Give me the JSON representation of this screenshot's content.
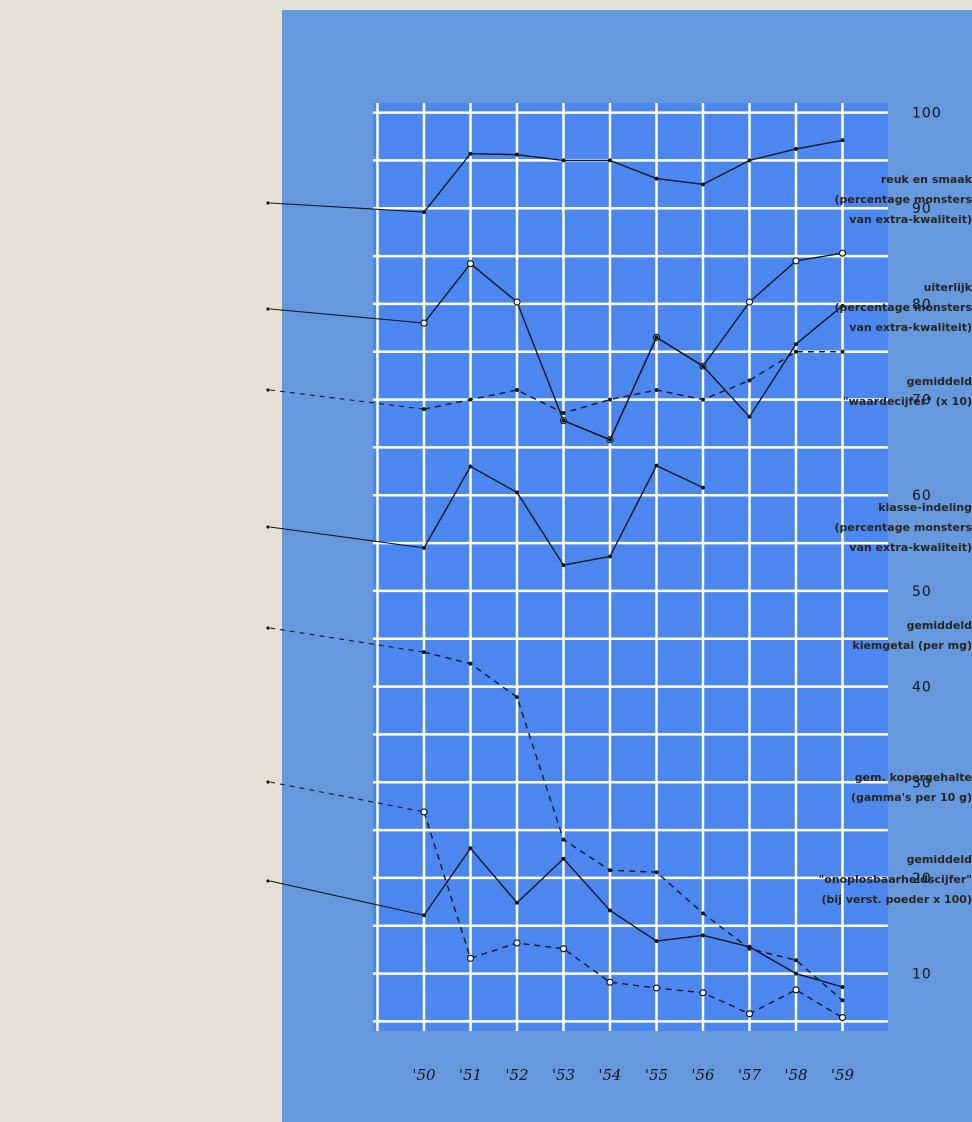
{
  "chart_data": {
    "type": "line",
    "categories": [
      "'50",
      "'51",
      "'52",
      "'53",
      "'54",
      "'55",
      "'56",
      "'57",
      "'58",
      "'59"
    ],
    "yticks": [
      "100",
      "90",
      "80",
      "70",
      "60",
      "50",
      "40",
      "30",
      "20",
      "10"
    ],
    "ylim": [
      4,
      101
    ],
    "grid": true,
    "series": [
      {
        "name_lines": [
          "reuk en smaak",
          "(percentage monsters",
          "van extra-kwaliteit)"
        ],
        "style": "solid",
        "marker": "dot",
        "values": [
          89.6,
          95.7,
          95.6,
          95.0,
          95.0,
          93.1,
          92.5,
          95.0,
          96.2,
          97.1
        ]
      },
      {
        "name_lines": [
          "uiterlijk",
          "(percentage monsters",
          "van extra-kwaliteit)"
        ],
        "style": "solid",
        "marker": "circle",
        "values": [
          78.0,
          84.2,
          80.2,
          67.8,
          65.8,
          76.5,
          73.5,
          80.2,
          84.5,
          85.3
        ]
      },
      {
        "name_lines": [
          "gemiddeld",
          "\"waardecijfer\" (x 10)"
        ],
        "style": "dashed",
        "marker": "dot",
        "values": [
          69.0,
          70.0,
          71.0,
          68.6,
          70.0,
          71.0,
          70.0,
          72.0,
          75.0,
          75.0
        ]
      },
      {
        "name_lines": [
          "",
          "",
          ""
        ],
        "style": "solid",
        "marker": "dot",
        "values": [
          null,
          null,
          null,
          67.8,
          65.8,
          76.5,
          73.5,
          68.2,
          75.8,
          79.8
        ]
      },
      {
        "name_lines": [
          "klasse-indeling",
          "(percentage monsters",
          "van extra-kwaliteit)"
        ],
        "style": "solid",
        "marker": "dot",
        "values": [
          54.5,
          63.0,
          60.3,
          52.7,
          53.6,
          63.1,
          60.8,
          null,
          null,
          null
        ]
      },
      {
        "name_lines": [
          "gemiddeld",
          "kiemgetal (per mg)"
        ],
        "style": "dashed",
        "marker": "dot",
        "values": [
          43.6,
          42.4,
          38.9,
          24.0,
          20.8,
          20.6,
          16.3,
          12.6,
          11.4,
          7.2
        ]
      },
      {
        "name_lines": [
          "gem. kopergehalte",
          "(gamma's per 10 g)"
        ],
        "style": "dashed",
        "marker": "circle",
        "values": [
          26.9,
          11.6,
          13.2,
          12.6,
          9.1,
          8.5,
          8.0,
          5.8,
          8.3,
          5.4
        ]
      },
      {
        "name_lines": [
          "gemiddeld",
          "\"onoplosbaarheidscijfer\"",
          "(bij verst. poeder x 100)"
        ],
        "style": "solid",
        "marker": "dot",
        "values": [
          16.1,
          23.1,
          17.4,
          22.0,
          16.6,
          13.4,
          14.0,
          12.8,
          10.0,
          8.6
        ]
      }
    ]
  }
}
